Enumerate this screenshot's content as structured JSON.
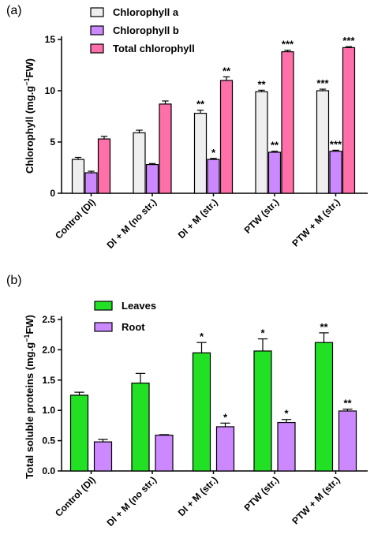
{
  "chart_data": [
    {
      "panel": "(a)",
      "type": "bar",
      "ylabel_main": "Chlorophyll (mg.g",
      "ylabel_sup": "−1",
      "ylabel_tail": "FW)",
      "ylim": [
        0,
        15
      ],
      "yticks": [
        0,
        5,
        10,
        15
      ],
      "categories": [
        "Control (DI)",
        "DI + M (no str.)",
        "DI + M (str.)",
        "PTW (str.)",
        "PTW + M (str.)"
      ],
      "legend_position": "top-left",
      "series": [
        {
          "name": "Chlorophyll a",
          "color": "#efefef",
          "values": [
            3.3,
            5.9,
            7.8,
            9.9,
            10.0
          ],
          "errors": [
            0.2,
            0.25,
            0.3,
            0.15,
            0.15
          ],
          "sig": [
            "",
            "",
            "**",
            "**",
            "***"
          ]
        },
        {
          "name": "Chlorophyll b",
          "color": "#cc88ff",
          "values": [
            2.0,
            2.8,
            3.3,
            4.0,
            4.1
          ],
          "errors": [
            0.15,
            0.1,
            0.1,
            0.1,
            0.1
          ],
          "sig": [
            "",
            "",
            "*",
            "**",
            "***"
          ]
        },
        {
          "name": "Total chlorophyll",
          "color": "#ff6fa8",
          "values": [
            5.3,
            8.7,
            11.0,
            13.8,
            14.2
          ],
          "errors": [
            0.25,
            0.3,
            0.35,
            0.15,
            0.1
          ],
          "sig": [
            "",
            "",
            "**",
            "***",
            "***"
          ]
        }
      ]
    },
    {
      "panel": "(b)",
      "type": "bar",
      "ylabel_main": "Total soluble proteins (mg.g",
      "ylabel_sup": "−1",
      "ylabel_tail": "FW)",
      "ylim": [
        0,
        2.5
      ],
      "yticks": [
        0.0,
        0.5,
        1.0,
        1.5,
        2.0,
        2.5
      ],
      "categories": [
        "Control (DI)",
        "DI + M (no str.)",
        "DI + M (str.)",
        "PTW (str.)",
        "PTW + M (str.)"
      ],
      "legend_position": "top-left",
      "series": [
        {
          "name": "Leaves",
          "color": "#22e024",
          "values": [
            1.25,
            1.45,
            1.95,
            1.98,
            2.12
          ],
          "errors": [
            0.05,
            0.16,
            0.17,
            0.2,
            0.16
          ],
          "sig": [
            "",
            "",
            "*",
            "*",
            "**"
          ]
        },
        {
          "name": "Root",
          "color": "#cc88ff",
          "values": [
            0.48,
            0.59,
            0.73,
            0.8,
            0.99
          ],
          "errors": [
            0.04,
            0.01,
            0.06,
            0.05,
            0.03
          ],
          "sig": [
            "",
            "",
            "*",
            "*",
            "**"
          ]
        }
      ]
    }
  ]
}
